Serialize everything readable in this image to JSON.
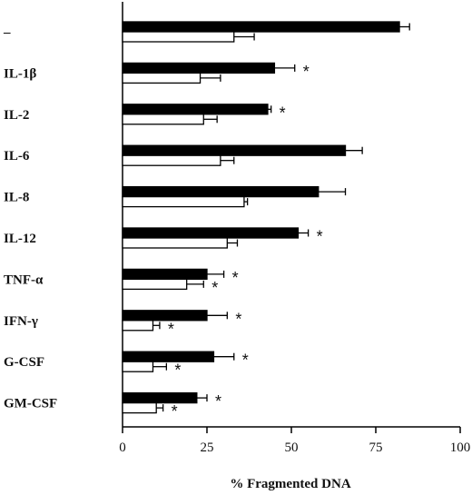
{
  "chart_data": {
    "type": "bar",
    "orientation": "horizontal",
    "categories": [
      "–",
      "IL-1β",
      "IL-2",
      "IL-6",
      "IL-8",
      "IL-12",
      "TNF-α",
      "IFN-γ",
      "G-CSF",
      "GM-CSF"
    ],
    "series": [
      {
        "fill": "black",
        "values": [
          82,
          45,
          43,
          66,
          58,
          52,
          25,
          25,
          27,
          22
        ],
        "errors": [
          3,
          6,
          1,
          5,
          8,
          3,
          5,
          6,
          6,
          3
        ],
        "significant": [
          false,
          true,
          true,
          false,
          false,
          true,
          true,
          true,
          true,
          true
        ]
      },
      {
        "fill": "white",
        "values": [
          33,
          23,
          24,
          29,
          36,
          31,
          19,
          9,
          9,
          10
        ],
        "errors": [
          6,
          6,
          4,
          4,
          1,
          3,
          5,
          2,
          4,
          2
        ],
        "significant": [
          false,
          false,
          false,
          false,
          false,
          false,
          true,
          true,
          true,
          true
        ]
      }
    ],
    "significance_marker": "*",
    "xlabel": "% Fragmented DNA",
    "xlim": [
      0,
      100
    ],
    "xticks": [
      "0",
      "25",
      "50",
      "75",
      "100"
    ],
    "grid": false,
    "legend": "none",
    "colors": {
      "filled": "#000000",
      "open": "#ffffff",
      "stroke": "#000000"
    }
  }
}
